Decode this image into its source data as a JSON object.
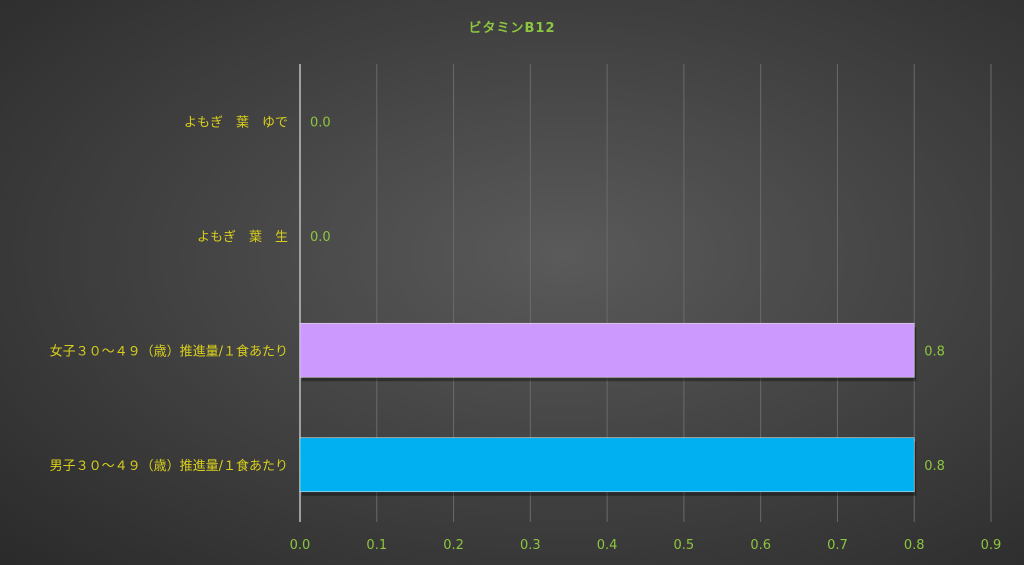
{
  "chart_data": {
    "type": "bar",
    "orientation": "horizontal",
    "title": "ビタミンB12",
    "categories": [
      "よもぎ　葉　ゆで",
      "よもぎ　葉　生",
      "女子３０～４９（歳）推進量/１食あたり",
      "男子３０～４９（歳）推進量/１食あたり"
    ],
    "values": [
      0.0,
      0.0,
      0.8,
      0.8
    ],
    "data_labels": [
      "0.0",
      "0.0",
      "0.8",
      "0.8"
    ],
    "bar_colors": [
      "#cc99ff",
      "#cc99ff",
      "#cc99ff",
      "#00b0f0"
    ],
    "xlim": [
      0,
      0.9
    ],
    "xticks": [
      "0.0",
      "0.1",
      "0.2",
      "0.3",
      "0.4",
      "0.5",
      "0.6",
      "0.7",
      "0.8",
      "0.9"
    ],
    "grid": true,
    "legend": "none"
  }
}
